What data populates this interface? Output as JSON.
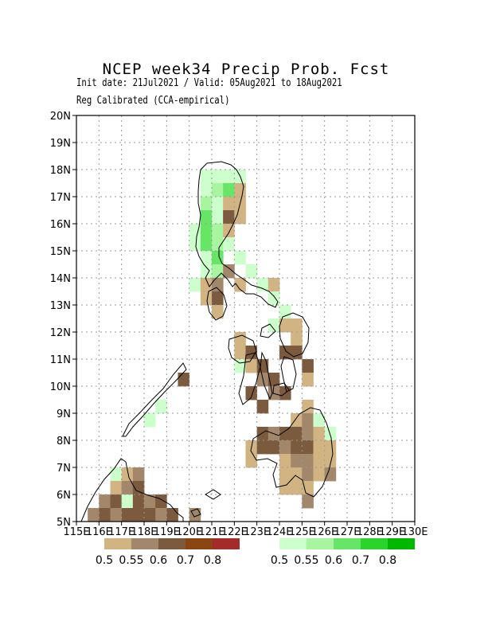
{
  "header": {
    "title": "NCEP week34 Precip Prob. Fcst",
    "subtitle": "Init date: 21Jul2021 / Valid: 05Aug2021 to 18Aug2021",
    "method": "Reg Calibrated (CCA-empirical)"
  },
  "map": {
    "lon_range": [
      115,
      130
    ],
    "lat_range": [
      5,
      20
    ],
    "lat_labels": [
      "5N",
      "6N",
      "7N",
      "8N",
      "9N",
      "10N",
      "11N",
      "12N",
      "13N",
      "14N",
      "15N",
      "16N",
      "17N",
      "18N",
      "19N",
      "20N"
    ],
    "lon_labels": [
      "115E",
      "116E",
      "117E",
      "118E",
      "119E",
      "120E",
      "121E",
      "122E",
      "123E",
      "124E",
      "125E",
      "126E",
      "127E",
      "128E",
      "129E",
      "130E"
    ],
    "grid": true,
    "cell_deg": 0.5
  },
  "legend": {
    "dry": {
      "labels": [
        "0.5",
        "0.55",
        "0.6",
        "0.7",
        "0.8"
      ],
      "colors": [
        "#d2b483",
        "#a3876b",
        "#7c5a3e",
        "#8b4513",
        "#a52a2a"
      ]
    },
    "wet": {
      "labels": [
        "0.5",
        "0.55",
        "0.6",
        "0.7",
        "0.8"
      ],
      "colors": [
        "#ccffcc",
        "#a8f5a0",
        "#66e566",
        "#2ad42a",
        "#00b800"
      ]
    }
  },
  "cells": [
    {
      "lon": 120.5,
      "lat": 17.5,
      "c": "wet1"
    },
    {
      "lon": 121.0,
      "lat": 17.5,
      "c": "wet1"
    },
    {
      "lon": 121.5,
      "lat": 17.5,
      "c": "wet1"
    },
    {
      "lon": 122.0,
      "lat": 17.5,
      "c": "wet1"
    },
    {
      "lon": 120.5,
      "lat": 17.0,
      "c": "wet1"
    },
    {
      "lon": 121.0,
      "lat": 17.0,
      "c": "wet2"
    },
    {
      "lon": 121.5,
      "lat": 17.0,
      "c": "wet3"
    },
    {
      "lon": 122.0,
      "lat": 17.0,
      "c": "dry1"
    },
    {
      "lon": 120.5,
      "lat": 16.5,
      "c": "wet2"
    },
    {
      "lon": 121.0,
      "lat": 16.5,
      "c": "wet1"
    },
    {
      "lon": 121.5,
      "lat": 16.5,
      "c": "dry1"
    },
    {
      "lon": 122.0,
      "lat": 16.5,
      "c": "dry1"
    },
    {
      "lon": 120.5,
      "lat": 16.0,
      "c": "wet3"
    },
    {
      "lon": 121.0,
      "lat": 16.0,
      "c": "wet1"
    },
    {
      "lon": 121.5,
      "lat": 16.0,
      "c": "dry3"
    },
    {
      "lon": 122.0,
      "lat": 16.0,
      "c": "dry1"
    },
    {
      "lon": 120.0,
      "lat": 15.5,
      "c": "wet1"
    },
    {
      "lon": 120.5,
      "lat": 15.5,
      "c": "wet3"
    },
    {
      "lon": 121.0,
      "lat": 15.5,
      "c": "wet2"
    },
    {
      "lon": 121.5,
      "lat": 15.5,
      "c": "dry1"
    },
    {
      "lon": 120.0,
      "lat": 15.0,
      "c": "wet1"
    },
    {
      "lon": 120.5,
      "lat": 15.0,
      "c": "wet3"
    },
    {
      "lon": 121.0,
      "lat": 15.0,
      "c": "wet2"
    },
    {
      "lon": 121.5,
      "lat": 15.0,
      "c": "wet1"
    },
    {
      "lon": 120.5,
      "lat": 14.5,
      "c": "wet1"
    },
    {
      "lon": 121.0,
      "lat": 14.5,
      "c": "wet3"
    },
    {
      "lon": 122.0,
      "lat": 14.5,
      "c": "wet1"
    },
    {
      "lon": 120.5,
      "lat": 14.0,
      "c": "wet1"
    },
    {
      "lon": 121.0,
      "lat": 14.0,
      "c": "wet2"
    },
    {
      "lon": 121.5,
      "lat": 14.0,
      "c": "dry2"
    },
    {
      "lon": 122.5,
      "lat": 14.0,
      "c": "wet1"
    },
    {
      "lon": 120.0,
      "lat": 13.5,
      "c": "wet1"
    },
    {
      "lon": 120.5,
      "lat": 13.5,
      "c": "dry1"
    },
    {
      "lon": 121.0,
      "lat": 13.5,
      "c": "dry2"
    },
    {
      "lon": 122.0,
      "lat": 13.5,
      "c": "dry1"
    },
    {
      "lon": 123.0,
      "lat": 13.5,
      "c": "wet1"
    },
    {
      "lon": 123.5,
      "lat": 13.5,
      "c": "dry1"
    },
    {
      "lon": 120.5,
      "lat": 13.0,
      "c": "dry1"
    },
    {
      "lon": 121.0,
      "lat": 13.0,
      "c": "dry3"
    },
    {
      "lon": 123.5,
      "lat": 13.0,
      "c": "wet1"
    },
    {
      "lon": 121.0,
      "lat": 12.5,
      "c": "dry1"
    },
    {
      "lon": 124.0,
      "lat": 12.5,
      "c": "wet1"
    },
    {
      "lon": 123.5,
      "lat": 12.0,
      "c": "wet1"
    },
    {
      "lon": 124.0,
      "lat": 12.0,
      "c": "dry1"
    },
    {
      "lon": 124.5,
      "lat": 12.0,
      "c": "dry1"
    },
    {
      "lon": 122.0,
      "lat": 11.5,
      "c": "dry1"
    },
    {
      "lon": 124.5,
      "lat": 11.5,
      "c": "dry1"
    },
    {
      "lon": 122.0,
      "lat": 11.0,
      "c": "dry1"
    },
    {
      "lon": 122.5,
      "lat": 11.0,
      "c": "dry3"
    },
    {
      "lon": 124.0,
      "lat": 11.0,
      "c": "dry3"
    },
    {
      "lon": 124.5,
      "lat": 11.0,
      "c": "dry3"
    },
    {
      "lon": 122.0,
      "lat": 10.5,
      "c": "wet1"
    },
    {
      "lon": 122.5,
      "lat": 10.5,
      "c": "dry1"
    },
    {
      "lon": 123.0,
      "lat": 10.5,
      "c": "dry3"
    },
    {
      "lon": 125.0,
      "lat": 10.5,
      "c": "dry3"
    },
    {
      "lon": 123.0,
      "lat": 10.0,
      "c": "dry2"
    },
    {
      "lon": 123.5,
      "lat": 10.0,
      "c": "dry3"
    },
    {
      "lon": 125.0,
      "lat": 10.0,
      "c": "dry1"
    },
    {
      "lon": 122.5,
      "lat": 9.5,
      "c": "dry3"
    },
    {
      "lon": 123.5,
      "lat": 9.5,
      "c": "dry2"
    },
    {
      "lon": 124.0,
      "lat": 9.5,
      "c": "dry3"
    },
    {
      "lon": 123.0,
      "lat": 9.0,
      "c": "dry3"
    },
    {
      "lon": 125.0,
      "lat": 9.0,
      "c": "dry1"
    },
    {
      "lon": 124.5,
      "lat": 8.5,
      "c": "dry1"
    },
    {
      "lon": 125.0,
      "lat": 8.5,
      "c": "dry2"
    },
    {
      "lon": 125.5,
      "lat": 8.5,
      "c": "wet1"
    },
    {
      "lon": 123.0,
      "lat": 8.0,
      "c": "dry3"
    },
    {
      "lon": 123.5,
      "lat": 8.0,
      "c": "dry2"
    },
    {
      "lon": 124.0,
      "lat": 8.0,
      "c": "dry3"
    },
    {
      "lon": 124.5,
      "lat": 8.0,
      "c": "dry3"
    },
    {
      "lon": 125.0,
      "lat": 8.0,
      "c": "dry2"
    },
    {
      "lon": 125.5,
      "lat": 8.0,
      "c": "dry1"
    },
    {
      "lon": 126.0,
      "lat": 8.0,
      "c": "wet1"
    },
    {
      "lon": 122.5,
      "lat": 7.5,
      "c": "dry1"
    },
    {
      "lon": 123.0,
      "lat": 7.5,
      "c": "dry3"
    },
    {
      "lon": 123.5,
      "lat": 7.5,
      "c": "dry3"
    },
    {
      "lon": 124.0,
      "lat": 7.5,
      "c": "dry2"
    },
    {
      "lon": 124.5,
      "lat": 7.5,
      "c": "dry3"
    },
    {
      "lon": 125.0,
      "lat": 7.5,
      "c": "dry3"
    },
    {
      "lon": 125.5,
      "lat": 7.5,
      "c": "dry1"
    },
    {
      "lon": 126.0,
      "lat": 7.5,
      "c": "dry1"
    },
    {
      "lon": 122.5,
      "lat": 7.0,
      "c": "dry1"
    },
    {
      "lon": 124.0,
      "lat": 7.0,
      "c": "dry1"
    },
    {
      "lon": 124.5,
      "lat": 7.0,
      "c": "dry2"
    },
    {
      "lon": 125.0,
      "lat": 7.0,
      "c": "dry2"
    },
    {
      "lon": 125.5,
      "lat": 7.0,
      "c": "dry1"
    },
    {
      "lon": 126.0,
      "lat": 7.0,
      "c": "dry1"
    },
    {
      "lon": 124.0,
      "lat": 6.5,
      "c": "dry1"
    },
    {
      "lon": 124.5,
      "lat": 6.5,
      "c": "dry1"
    },
    {
      "lon": 125.0,
      "lat": 6.5,
      "c": "dry2"
    },
    {
      "lon": 125.5,
      "lat": 6.5,
      "c": "dry1"
    },
    {
      "lon": 126.0,
      "lat": 6.5,
      "c": "dry2"
    },
    {
      "lon": 124.0,
      "lat": 6.0,
      "c": "dry1"
    },
    {
      "lon": 124.5,
      "lat": 6.0,
      "c": "dry1"
    },
    {
      "lon": 125.0,
      "lat": 6.0,
      "c": "dry1"
    },
    {
      "lon": 125.0,
      "lat": 5.5,
      "c": "dry2"
    },
    {
      "lon": 116.5,
      "lat": 6.5,
      "c": "wet1"
    },
    {
      "lon": 117.0,
      "lat": 6.5,
      "c": "dry1"
    },
    {
      "lon": 117.5,
      "lat": 6.5,
      "c": "dry2"
    },
    {
      "lon": 116.5,
      "lat": 6.0,
      "c": "dry1"
    },
    {
      "lon": 117.0,
      "lat": 6.0,
      "c": "dry2"
    },
    {
      "lon": 117.5,
      "lat": 6.0,
      "c": "dry3"
    },
    {
      "lon": 116.0,
      "lat": 5.5,
      "c": "dry2"
    },
    {
      "lon": 116.5,
      "lat": 5.5,
      "c": "dry3"
    },
    {
      "lon": 117.0,
      "lat": 5.5,
      "c": "wet1"
    },
    {
      "lon": 117.5,
      "lat": 5.5,
      "c": "dry3"
    },
    {
      "lon": 118.0,
      "lat": 5.5,
      "c": "dry2"
    },
    {
      "lon": 118.5,
      "lat": 5.5,
      "c": "dry3"
    },
    {
      "lon": 115.5,
      "lat": 5.0,
      "c": "dry2"
    },
    {
      "lon": 116.0,
      "lat": 5.0,
      "c": "dry3"
    },
    {
      "lon": 116.5,
      "lat": 5.0,
      "c": "dry2"
    },
    {
      "lon": 117.0,
      "lat": 5.0,
      "c": "dry3"
    },
    {
      "lon": 117.5,
      "lat": 5.0,
      "c": "dry3"
    },
    {
      "lon": 118.0,
      "lat": 5.0,
      "c": "dry3"
    },
    {
      "lon": 118.5,
      "lat": 5.0,
      "c": "dry2"
    },
    {
      "lon": 119.0,
      "lat": 5.0,
      "c": "dry3"
    },
    {
      "lon": 120.0,
      "lat": 5.0,
      "c": "dry2"
    },
    {
      "lon": 118.0,
      "lat": 8.5,
      "c": "wet1"
    },
    {
      "lon": 118.5,
      "lat": 9.0,
      "c": "wet1"
    },
    {
      "lon": 119.5,
      "lat": 10.0,
      "c": "dry3"
    }
  ]
}
